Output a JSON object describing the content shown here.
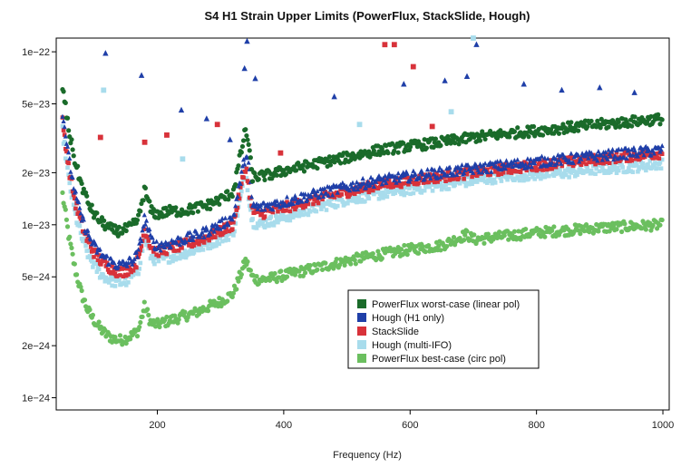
{
  "chart_data": {
    "type": "scatter",
    "title": "S4 H1 Strain Upper Limits (PowerFlux, StackSlide, Hough)",
    "xlabel": "Frequency (Hz)",
    "ylabel": "",
    "x_scale": "linear",
    "y_scale": "log",
    "xlim": [
      40,
      1010
    ],
    "ylim": [
      8.5e-25,
      1.2e-22
    ],
    "x_ticks": [
      200,
      400,
      600,
      800,
      1000
    ],
    "x_tick_labels": [
      "200",
      "400",
      "600",
      "800",
      "1000"
    ],
    "y_ticks": [
      1e-24,
      2e-24,
      5e-24,
      1e-23,
      2e-23,
      5e-23,
      1e-22
    ],
    "y_tick_labels": [
      "1e−24",
      "2e−24",
      "5e−24",
      "1e−23",
      "2e−23",
      "5e−23",
      "1e−22"
    ],
    "legend_position": "center-right",
    "grid": false,
    "series": [
      {
        "name": "PowerFlux worst-case (linear pol)",
        "color": "#1a6b2a",
        "marker": "circle",
        "x": [
          50,
          60,
          70,
          80,
          90,
          100,
          110,
          120,
          130,
          140,
          150,
          160,
          170,
          180,
          190,
          200,
          220,
          240,
          260,
          280,
          300,
          320,
          340,
          345,
          350,
          360,
          380,
          400,
          450,
          500,
          550,
          600,
          650,
          700,
          750,
          800,
          850,
          900,
          950,
          1000
        ],
        "y": [
          6.3e-23,
          3.5e-23,
          2.3e-23,
          1.7e-23,
          1.35e-23,
          1.15e-23,
          1.05e-23,
          9.8e-24,
          9.3e-24,
          9.2e-24,
          9.4e-24,
          9.8e-24,
          1.08e-23,
          1.6e-23,
          1.2e-23,
          1.15e-23,
          1.2e-23,
          1.2e-23,
          1.25e-23,
          1.3e-23,
          1.4e-23,
          1.55e-23,
          3.6e-23,
          2.8e-23,
          1.9e-23,
          1.9e-23,
          1.95e-23,
          2.05e-23,
          2.25e-23,
          2.45e-23,
          2.7e-23,
          2.85e-23,
          3e-23,
          3.2e-23,
          3.35e-23,
          3.5e-23,
          3.65e-23,
          3.8e-23,
          3.95e-23,
          4.1e-23
        ]
      },
      {
        "name": "Hough (H1 only)",
        "color": "#1f3fa8",
        "marker": "triangle",
        "x": [
          50,
          60,
          70,
          80,
          90,
          100,
          110,
          120,
          130,
          140,
          150,
          160,
          170,
          180,
          190,
          200,
          220,
          240,
          260,
          280,
          300,
          320,
          340,
          345,
          350,
          360,
          380,
          400,
          450,
          500,
          550,
          600,
          650,
          700,
          750,
          800,
          850,
          900,
          950,
          1000
        ],
        "y": [
          4.5e-23,
          2.4e-23,
          1.5e-23,
          1.1e-23,
          8.8e-24,
          7.5e-24,
          6.8e-24,
          6.3e-24,
          6e-24,
          5.8e-24,
          5.9e-24,
          6.2e-24,
          6.8e-24,
          1.1e-23,
          8.2e-24,
          7.5e-24,
          7.8e-24,
          8.2e-24,
          8.6e-24,
          9.2e-24,
          1e-23,
          1.1e-23,
          2.6e-23,
          2.2e-23,
          1.3e-23,
          1.25e-23,
          1.3e-23,
          1.35e-23,
          1.5e-23,
          1.65e-23,
          1.8e-23,
          1.9e-23,
          2e-23,
          2.1e-23,
          2.2e-23,
          2.3e-23,
          2.4e-23,
          2.5e-23,
          2.6e-23,
          2.7e-23
        ]
      },
      {
        "name": "StackSlide",
        "color": "#d8323a",
        "marker": "square",
        "x": [
          50,
          60,
          70,
          80,
          90,
          100,
          110,
          120,
          130,
          140,
          150,
          160,
          170,
          180,
          190,
          200,
          220,
          240,
          260,
          280,
          300,
          320,
          340,
          350,
          360,
          380,
          400,
          450,
          500,
          550,
          600,
          650,
          700,
          750,
          800,
          850,
          900,
          950,
          1000
        ],
        "y": [
          4e-23,
          2.1e-23,
          1.35e-23,
          1e-23,
          8e-24,
          6.9e-24,
          6.2e-24,
          5.8e-24,
          5.5e-24,
          5.3e-24,
          5.4e-24,
          5.7e-24,
          6.2e-24,
          9.5e-24,
          7.5e-24,
          7e-24,
          7.3e-24,
          7.6e-24,
          8e-24,
          8.5e-24,
          9.2e-24,
          1e-23,
          2.2e-23,
          1.2e-23,
          1.15e-23,
          1.2e-23,
          1.25e-23,
          1.4e-23,
          1.55e-23,
          1.7e-23,
          1.8e-23,
          1.9e-23,
          2e-23,
          2.1e-23,
          2.2e-23,
          2.3e-23,
          2.4e-23,
          2.5e-23,
          2.6e-23
        ]
      },
      {
        "name": "Hough (multi-IFO)",
        "color": "#a8dcec",
        "marker": "square",
        "x": [
          50,
          60,
          70,
          80,
          90,
          100,
          110,
          120,
          130,
          140,
          150,
          160,
          170,
          180,
          190,
          200,
          220,
          240,
          260,
          280,
          300,
          320,
          340,
          350,
          360,
          380,
          400,
          450,
          500,
          550,
          600,
          650,
          700,
          750,
          800,
          850,
          900,
          950,
          1000
        ],
        "y": [
          3.5e-23,
          1.8e-23,
          1.15e-23,
          8.5e-24,
          6.8e-24,
          5.8e-24,
          5.2e-24,
          4.9e-24,
          4.7e-24,
          4.6e-24,
          4.7e-24,
          5e-24,
          5.5e-24,
          8.5e-24,
          6.5e-24,
          6.2e-24,
          6.5e-24,
          6.8e-24,
          7.2e-24,
          7.7e-24,
          8.3e-24,
          9e-24,
          2e-23,
          1.05e-23,
          1e-23,
          1.05e-23,
          1.1e-23,
          1.25e-23,
          1.4e-23,
          1.5e-23,
          1.6e-23,
          1.7e-23,
          1.8e-23,
          1.9e-23,
          1.95e-23,
          2e-23,
          2.1e-23,
          2.15e-23,
          2.25e-23
        ]
      },
      {
        "name": "PowerFlux best-case (circ pol)",
        "color": "#6bbf5f",
        "marker": "circle",
        "x": [
          50,
          60,
          70,
          80,
          90,
          100,
          110,
          120,
          130,
          140,
          150,
          160,
          170,
          180,
          190,
          200,
          220,
          240,
          260,
          280,
          300,
          320,
          340,
          345,
          350,
          360,
          380,
          400,
          450,
          500,
          550,
          600,
          650,
          690,
          700,
          750,
          800,
          850,
          900,
          950,
          1000
        ],
        "y": [
          1.5e-23,
          8.5e-24,
          5.5e-24,
          4e-24,
          3.2e-24,
          2.8e-24,
          2.5e-24,
          2.3e-24,
          2.2e-24,
          2.15e-24,
          2.2e-24,
          2.3e-24,
          2.45e-24,
          3.4e-24,
          2.7e-24,
          2.65e-24,
          2.8e-24,
          2.95e-24,
          3.1e-24,
          3.35e-24,
          3.6e-24,
          4e-24,
          6.2e-24,
          5.6e-24,
          5e-24,
          4.8e-24,
          4.9e-24,
          5.1e-24,
          5.6e-24,
          6.2e-24,
          6.7e-24,
          7.2e-24,
          7.6e-24,
          8.8e-24,
          8.2e-24,
          8.6e-24,
          9e-24,
          9.3e-24,
          9.6e-24,
          9.8e-24,
          1e-23
        ]
      }
    ],
    "outliers": [
      {
        "series": "Hough (H1 only)",
        "x": [
          118,
          175,
          238,
          278,
          315,
          338,
          342,
          355,
          480,
          590,
          655,
          690,
          705,
          780,
          840,
          900,
          955
        ],
        "y": [
          9.8e-23,
          7.3e-23,
          4.6e-23,
          4.1e-23,
          3.1e-23,
          8e-23,
          1.15e-22,
          7e-23,
          5.5e-23,
          6.5e-23,
          6.8e-23,
          7.2e-23,
          1.1e-22,
          6.5e-23,
          6e-23,
          6.2e-23,
          5.8e-23
        ]
      },
      {
        "series": "StackSlide",
        "x": [
          110,
          180,
          215,
          295,
          395,
          560,
          575,
          605,
          635
        ],
        "y": [
          3.2e-23,
          3e-23,
          3.3e-23,
          3.8e-23,
          2.6e-23,
          1.1e-22,
          1.1e-22,
          8.2e-23,
          3.7e-23
        ]
      },
      {
        "series": "Hough (multi-IFO)",
        "x": [
          115,
          240,
          520,
          665,
          700
        ],
        "y": [
          6e-23,
          2.4e-23,
          3.8e-23,
          4.5e-23,
          1.2e-22
        ]
      }
    ]
  }
}
